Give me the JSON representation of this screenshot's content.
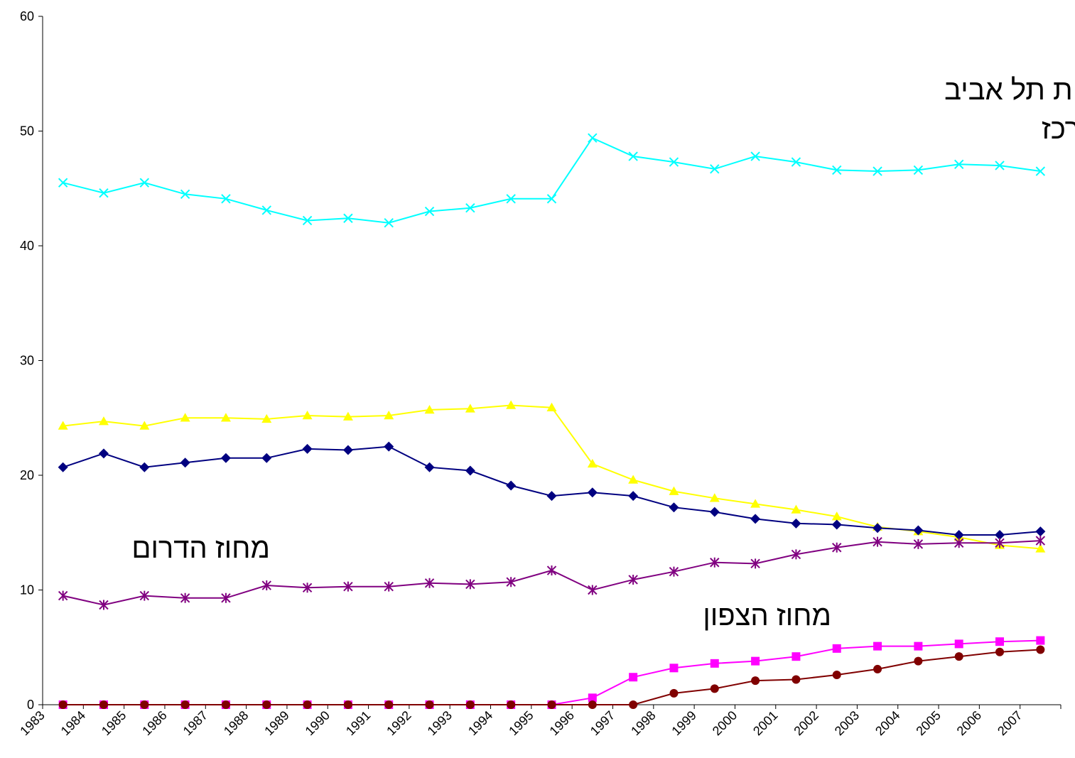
{
  "chart_data": {
    "type": "line",
    "categories": [
      "1983",
      "1984",
      "1985",
      "1986",
      "1987",
      "1988",
      "1989",
      "1990",
      "1991",
      "1992",
      "1993",
      "1994",
      "1995",
      "1996",
      "1997",
      "1998",
      "1999",
      "2000",
      "2001",
      "2002",
      "2003",
      "2004",
      "2005",
      "2006",
      "2007"
    ],
    "ylim": [
      0,
      60
    ],
    "yticks": [
      0,
      10,
      20,
      30,
      40,
      50,
      60
    ],
    "grid": false,
    "legend": "none",
    "series": [
      {
        "color": "#00FFFF",
        "marker": "x",
        "values": [
          45.5,
          44.6,
          45.5,
          44.5,
          44.1,
          43.1,
          42.2,
          42.4,
          42.0,
          43.0,
          43.3,
          44.1,
          44.1,
          49.4,
          47.8,
          47.3,
          46.7,
          47.8,
          47.3,
          46.6,
          46.5,
          46.6,
          47.1,
          47.0,
          46.5
        ]
      },
      {
        "color": "#FFFF00",
        "marker": "triangle",
        "values": [
          24.3,
          24.7,
          24.3,
          25.0,
          25.0,
          24.9,
          25.2,
          25.1,
          25.2,
          25.7,
          25.8,
          26.1,
          25.9,
          21.0,
          19.6,
          18.6,
          18.0,
          17.5,
          17.0,
          16.4,
          15.5,
          15.1,
          14.6,
          13.9,
          13.6
        ]
      },
      {
        "color": "#000080",
        "marker": "diamond",
        "values": [
          20.7,
          21.9,
          20.7,
          21.1,
          21.5,
          21.5,
          22.3,
          22.2,
          22.5,
          20.7,
          20.4,
          19.1,
          18.2,
          18.5,
          18.2,
          17.2,
          16.8,
          16.2,
          15.8,
          15.7,
          15.4,
          15.2,
          14.8,
          14.8,
          15.1
        ]
      },
      {
        "color": "#800080",
        "marker": "star",
        "values": [
          9.5,
          8.7,
          9.5,
          9.3,
          9.3,
          10.4,
          10.2,
          10.3,
          10.3,
          10.6,
          10.5,
          10.7,
          11.7,
          10.0,
          10.9,
          11.6,
          12.4,
          12.3,
          13.1,
          13.7,
          14.2,
          14.0,
          14.1,
          14.1,
          14.3
        ]
      },
      {
        "color": "#FF00FF",
        "marker": "square",
        "values": [
          0,
          0,
          0,
          0,
          0,
          0,
          0,
          0,
          0,
          0,
          0,
          0,
          0,
          0.6,
          2.4,
          3.2,
          3.6,
          3.8,
          4.2,
          4.9,
          5.1,
          5.1,
          5.3,
          5.5,
          5.6
        ]
      },
      {
        "color": "#800000",
        "marker": "circle",
        "values": [
          0,
          0,
          0,
          0,
          0,
          0,
          0,
          0,
          0,
          0,
          0,
          0,
          0,
          0,
          0,
          1.0,
          1.4,
          2.1,
          2.2,
          2.6,
          3.1,
          3.8,
          4.2,
          4.6,
          4.8
        ]
      }
    ],
    "annotations": [
      {
        "text": "מחוז הדרום"
      },
      {
        "text": "מחוז הצפון"
      },
      {
        "text": "ות תל אביב"
      },
      {
        "text": "רכז"
      }
    ]
  }
}
